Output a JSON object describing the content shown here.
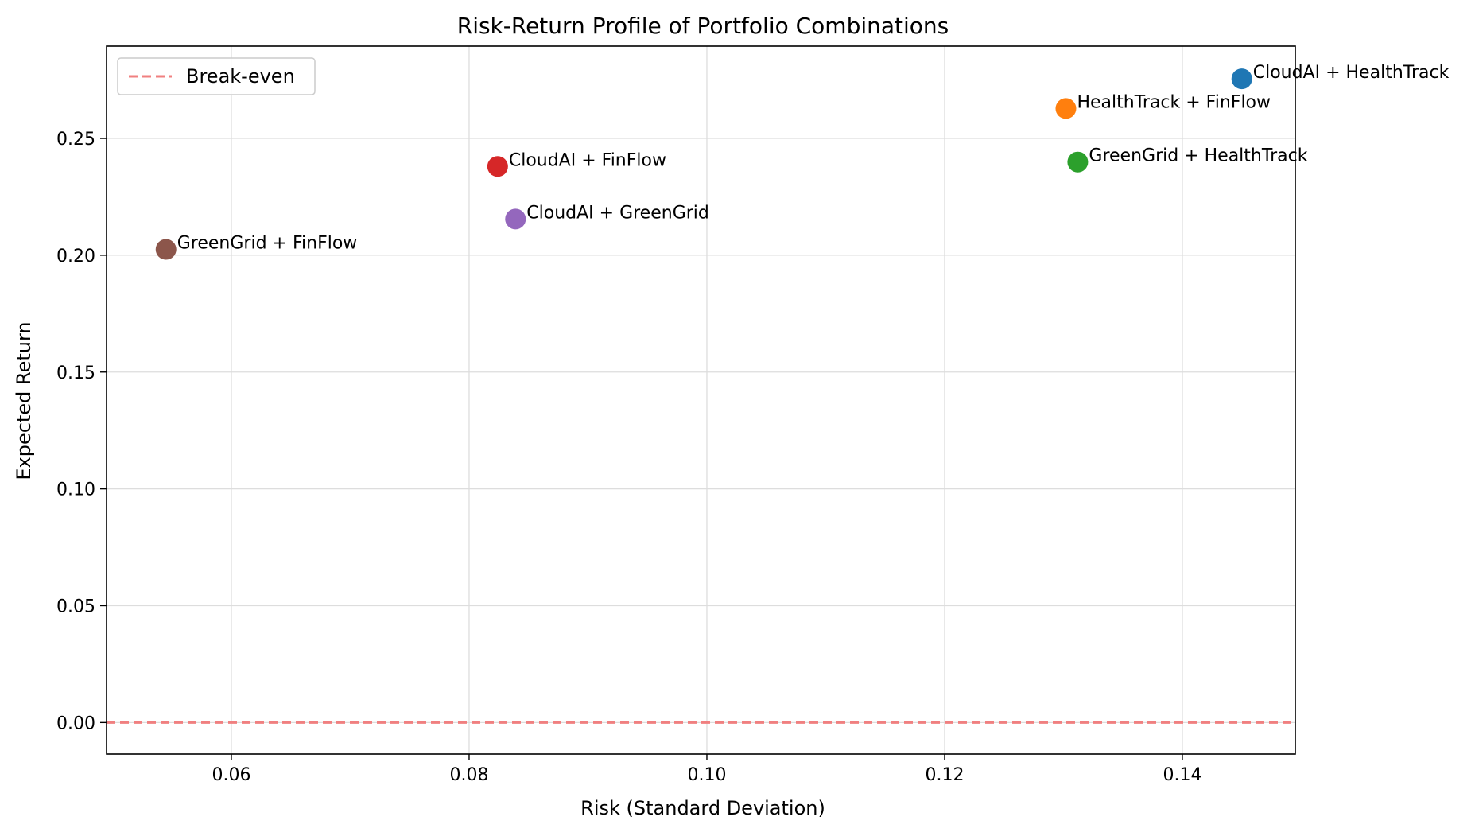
{
  "chart_data": {
    "type": "scatter",
    "title": "Risk-Return Profile of Portfolio Combinations",
    "xlabel": "Risk (Standard Deviation)",
    "ylabel": "Expected Return",
    "xlim": [
      0.0495,
      0.1495
    ],
    "ylim": [
      -0.0135,
      0.2895
    ],
    "xticks": [
      0.06,
      0.08,
      0.1,
      0.12,
      0.14
    ],
    "xtick_labels": [
      "0.06",
      "0.08",
      "0.10",
      "0.12",
      "0.14"
    ],
    "yticks": [
      0.0,
      0.05,
      0.1,
      0.15,
      0.2,
      0.25
    ],
    "ytick_labels": [
      "0.00",
      "0.05",
      "0.10",
      "0.15",
      "0.20",
      "0.25"
    ],
    "grid": true,
    "legend": {
      "placement": "top-left",
      "entries": [
        {
          "label": "Break-even",
          "style": "dashed",
          "color": "#f08080"
        }
      ]
    },
    "reference_line": {
      "label": "Break-even",
      "y": 0.0,
      "color": "#f08080",
      "style": "dashed"
    },
    "points": [
      {
        "label": "CloudAI + HealthTrack",
        "x": 0.145,
        "y": 0.2755,
        "color": "#1f77b4"
      },
      {
        "label": "HealthTrack + FinFlow",
        "x": 0.1302,
        "y": 0.2628,
        "color": "#ff7f0e"
      },
      {
        "label": "GreenGrid + HealthTrack",
        "x": 0.1312,
        "y": 0.2399,
        "color": "#2ca02c"
      },
      {
        "label": "CloudAI + FinFlow",
        "x": 0.0824,
        "y": 0.238,
        "color": "#d62728"
      },
      {
        "label": "CloudAI + GreenGrid",
        "x": 0.0839,
        "y": 0.2155,
        "color": "#9467bd"
      },
      {
        "label": "GreenGrid + FinFlow",
        "x": 0.0545,
        "y": 0.2025,
        "color": "#8c564b"
      }
    ]
  }
}
